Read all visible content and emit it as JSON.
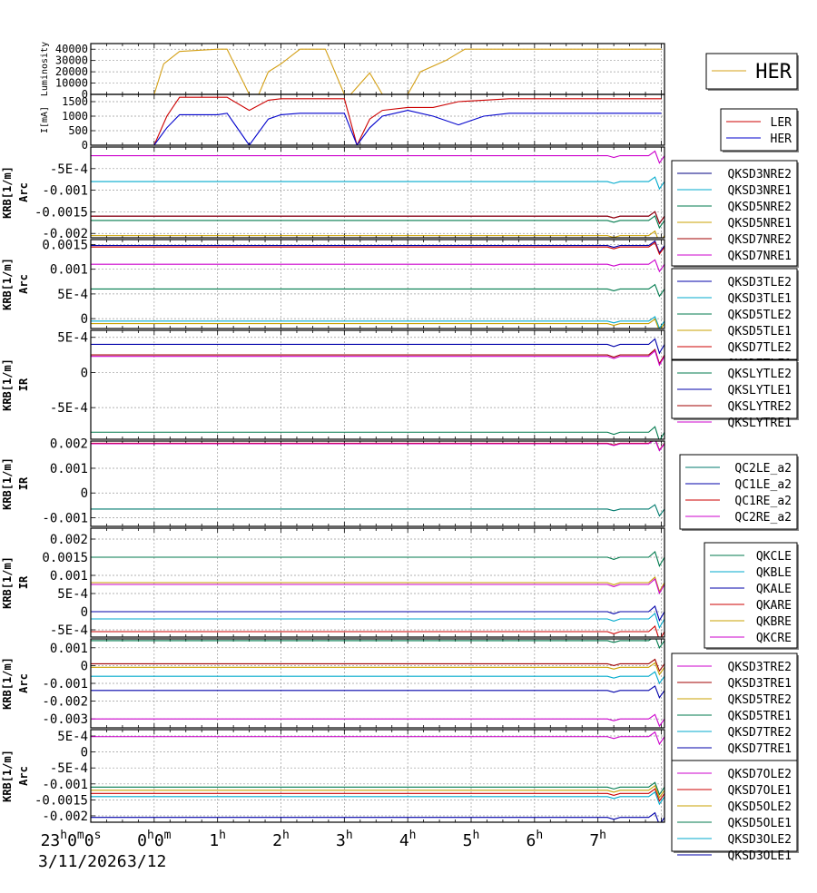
{
  "colors": {
    "luminosity": "#d4a017",
    "ler": "#cc0000",
    "her": "#0000cc"
  },
  "xaxis": {
    "tick_labels": [
      "23h0m0s",
      "0h0m",
      "1h",
      "2h",
      "3h",
      "4h",
      "5h",
      "6h",
      "7h"
    ],
    "date_left": "3/11/2026",
    "date_right": "3/12"
  },
  "chart_data": [
    {
      "type": "line",
      "ylabel": "Luminosity",
      "ylim": [
        0,
        45000
      ],
      "yticks": [
        0,
        10000,
        20000,
        30000,
        40000
      ],
      "ytick_labels": [
        "0",
        "10000",
        "20000",
        "30000",
        "40000"
      ],
      "x": [
        0,
        0.15,
        0.4,
        1.0,
        1.15,
        1.5,
        1.65,
        1.8,
        2.0,
        2.3,
        2.7,
        3.0,
        3.1,
        3.4,
        3.6,
        4.0,
        4.2,
        4.6,
        4.9,
        5.5,
        6.0,
        7.0,
        7.5,
        8.0
      ],
      "series": [
        {
          "name": "HER",
          "color": "#d4a017",
          "values": [
            0,
            27000,
            38000,
            40000,
            40000,
            0,
            0,
            20000,
            27000,
            40000,
            40000,
            0,
            0,
            19000,
            0,
            0,
            20000,
            30000,
            40000,
            40000,
            40000,
            40000,
            40000,
            40000
          ]
        }
      ],
      "legend": [
        "HER"
      ]
    },
    {
      "type": "line",
      "ylabel": "I[mA]",
      "ylim": [
        0,
        1750
      ],
      "yticks": [
        0,
        500,
        1000,
        1500
      ],
      "ytick_labels": [
        "0",
        "500",
        "1000",
        "1500"
      ],
      "x": [
        0,
        0.2,
        0.4,
        1.0,
        1.15,
        1.5,
        1.8,
        2.0,
        2.3,
        2.7,
        3.0,
        3.2,
        3.4,
        3.6,
        4.0,
        4.4,
        4.8,
        5.2,
        5.6,
        6.0,
        7.0,
        8.0
      ],
      "series": [
        {
          "name": "LER",
          "color": "#cc0000",
          "values": [
            0,
            1000,
            1650,
            1650,
            1650,
            1200,
            1550,
            1600,
            1600,
            1600,
            1600,
            0,
            900,
            1200,
            1300,
            1300,
            1500,
            1550,
            1600,
            1600,
            1600,
            1600
          ]
        },
        {
          "name": "HER",
          "color": "#0000cc",
          "values": [
            0,
            600,
            1050,
            1050,
            1100,
            0,
            900,
            1050,
            1100,
            1100,
            1100,
            0,
            600,
            1000,
            1200,
            1000,
            700,
            1000,
            1100,
            1100,
            1100,
            1100
          ]
        }
      ],
      "legend": [
        "LER",
        "HER"
      ]
    },
    {
      "type": "line",
      "ylabel": "KRB[1/m]",
      "ylabel2": "Arc",
      "ylim": [
        -0.0021,
        0.0
      ],
      "yticks": [
        -0.002,
        -0.0015,
        -0.001,
        -0.0005
      ],
      "ytick_labels": [
        "-0.002",
        "-0.0015",
        "-0.001",
        "-5E-4"
      ],
      "series": [
        {
          "name": "QKSD3NRE2",
          "color": "#000080",
          "level": -0.0016
        },
        {
          "name": "QKSD3NRE1",
          "color": "#00aacc",
          "level": -0.0008
        },
        {
          "name": "QKSD5NRE2",
          "color": "#007a4d",
          "level": -0.0017
        },
        {
          "name": "QKSD5NRE1",
          "color": "#c9a000",
          "level": -0.00205
        },
        {
          "name": "QKSD7NRE2",
          "color": "#a00000",
          "level": -0.0016
        },
        {
          "name": "QKSD7NRE1",
          "color": "#cc00cc",
          "level": -0.0002
        }
      ]
    },
    {
      "type": "line",
      "ylabel": "KRB[1/m]",
      "ylabel2": "Arc",
      "ylim": [
        -0.0002,
        0.0016
      ],
      "yticks": [
        0,
        0.0005,
        0.001,
        0.0015
      ],
      "ytick_labels": [
        "0",
        "5E-4",
        "0.001",
        "0.0015"
      ],
      "series": [
        {
          "name": "QKSD3TLE2",
          "color": "#0000aa",
          "level": 0.00148
        },
        {
          "name": "QKSD3TLE1",
          "color": "#00aacc",
          "level": -5e-05
        },
        {
          "name": "QKSD5TLE2",
          "color": "#007a4d",
          "level": 0.0006
        },
        {
          "name": "QKSD5TLE1",
          "color": "#c9a000",
          "level": -0.0001
        },
        {
          "name": "QKSD7TLE2",
          "color": "#cc0000",
          "level": 0.00145
        },
        {
          "name": "QKSD7TLE1",
          "color": "#cc00cc",
          "level": 0.0011
        }
      ]
    },
    {
      "type": "line",
      "ylabel": "KRB[1/m]",
      "ylabel2": "IR",
      "ylim": [
        -0.00095,
        0.0006
      ],
      "yticks": [
        -0.0005,
        0,
        0.0005
      ],
      "ytick_labels": [
        "-5E-4",
        "0",
        "5E-4"
      ],
      "series": [
        {
          "name": "QKSLYTLE2",
          "color": "#007a4d",
          "level": -0.00085
        },
        {
          "name": "QKSLYTLE1",
          "color": "#0000aa",
          "level": 0.0004
        },
        {
          "name": "QKSLYTRE2",
          "color": "#a00000",
          "level": 0.00025
        },
        {
          "name": "QKSLYTRE1",
          "color": "#cc00cc",
          "level": 0.00023
        }
      ]
    },
    {
      "type": "line",
      "ylabel": "KRB[1/m]",
      "ylabel2": "IR",
      "ylim": [
        -0.00135,
        0.0021
      ],
      "yticks": [
        -0.001,
        0,
        0.001,
        0.002
      ],
      "ytick_labels": [
        "-0.001",
        "0",
        "0.001",
        "0.002"
      ],
      "series": [
        {
          "name": "QC2LE_a2",
          "color": "#007a6d",
          "level": -0.00065
        },
        {
          "name": "QC1LE_a2",
          "color": "#0000aa",
          "level": 0.002
        },
        {
          "name": "QC1RE_a2",
          "color": "#cc0000",
          "level": 0.00201
        },
        {
          "name": "QC2RE_a2",
          "color": "#cc00cc",
          "level": 0.00199
        }
      ]
    },
    {
      "type": "line",
      "ylabel": "KRB[1/m]",
      "ylabel2": "IR",
      "ylim": [
        -0.0007,
        0.0023
      ],
      "yticks": [
        -0.0005,
        0,
        0.0005,
        0.001,
        0.0015,
        0.002
      ],
      "ytick_labels": [
        "-5E-4",
        "0",
        "5E-4",
        "0.001",
        "0.0015",
        "0.002"
      ],
      "series": [
        {
          "name": "QKCLE",
          "color": "#007a4d",
          "level": 0.0015
        },
        {
          "name": "QKBLE",
          "color": "#00aacc",
          "level": -0.0002
        },
        {
          "name": "QKALE",
          "color": "#0000aa",
          "level": 0
        },
        {
          "name": "QKARE",
          "color": "#cc0000",
          "level": -0.00055
        },
        {
          "name": "QKBRE",
          "color": "#c9a000",
          "level": 0.0008
        },
        {
          "name": "QKCRE",
          "color": "#cc00cc",
          "level": 0.00075
        }
      ]
    },
    {
      "type": "line",
      "ylabel": "KRB[1/m]",
      "ylabel2": "Arc",
      "ylim": [
        -0.0035,
        0.0015
      ],
      "yticks": [
        -0.003,
        -0.002,
        -0.001,
        0,
        0.001
      ],
      "ytick_labels": [
        "-0.003",
        "-0.002",
        "-0.001",
        "0",
        "0.001"
      ],
      "series": [
        {
          "name": "QKSD3TRE2",
          "color": "#cc00cc",
          "level": -0.003
        },
        {
          "name": "QKSD3TRE1",
          "color": "#a00000",
          "level": 0.0001
        },
        {
          "name": "QKSD5TRE2",
          "color": "#c9a000",
          "level": -0.0001
        },
        {
          "name": "QKSD5TRE1",
          "color": "#007a4d",
          "level": 0.0014
        },
        {
          "name": "QKSD7TRE2",
          "color": "#00aacc",
          "level": -0.0006
        },
        {
          "name": "QKSD7TRE1",
          "color": "#0000aa",
          "level": -0.0014
        }
      ]
    },
    {
      "type": "line",
      "ylabel": "KRB[1/m]",
      "ylabel2": "Arc",
      "ylim": [
        -0.0022,
        0.0007
      ],
      "yticks": [
        -0.002,
        -0.0015,
        -0.001,
        -0.0005,
        0,
        0.0005
      ],
      "ytick_labels": [
        "-0.002",
        "-0.0015",
        "-0.001",
        "-5E-4",
        "0",
        "5E-4"
      ],
      "series": [
        {
          "name": "QKSD7OLE2",
          "color": "#cc00cc",
          "level": 0.00048
        },
        {
          "name": "QKSD7OLE1",
          "color": "#cc0000",
          "level": -0.0013
        },
        {
          "name": "QKSD5OLE2",
          "color": "#c9a000",
          "level": -0.0012
        },
        {
          "name": "QKSD5OLE1",
          "color": "#007a4d",
          "level": -0.0011
        },
        {
          "name": "QKSD3OLE2",
          "color": "#00aacc",
          "level": -0.0014
        },
        {
          "name": "QKSD3OLE1",
          "color": "#0000aa",
          "level": -0.00205
        }
      ]
    }
  ]
}
